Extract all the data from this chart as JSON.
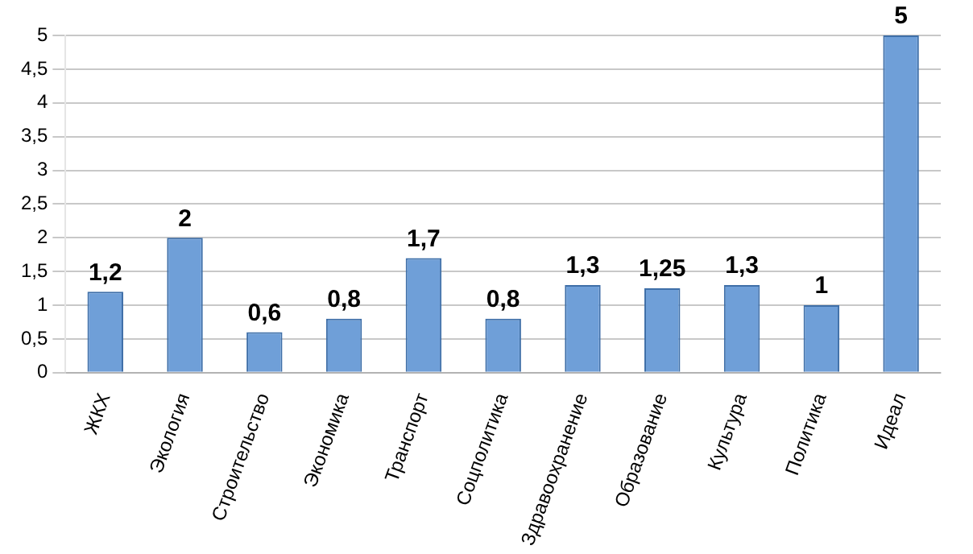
{
  "chart_data": {
    "type": "bar",
    "categories": [
      "ЖКХ",
      "Экология",
      "Строительство",
      "Экономика",
      "Транспорт",
      "Соцполитика",
      "Здравоохранение",
      "Образование",
      "Культура",
      "Политика",
      "Идеал"
    ],
    "values": [
      1.2,
      2,
      0.6,
      0.8,
      1.7,
      0.8,
      1.3,
      1.25,
      1.3,
      1,
      5
    ],
    "value_labels": [
      "1,2",
      "2",
      "0,6",
      "0,8",
      "1,7",
      "0,8",
      "1,3",
      "1,25",
      "1,3",
      "1",
      "5"
    ],
    "color": "#6f9fd8",
    "ylim": [
      0,
      5
    ],
    "yticks": [
      0,
      {
        "value": 0.5,
        "label": "0,5"
      },
      1,
      {
        "value": 1.5,
        "label": "1,5"
      },
      2,
      {
        "value": 2.5,
        "label": "2,5"
      },
      3,
      {
        "value": 3.5,
        "label": "3,5"
      },
      4,
      {
        "value": 4.5,
        "label": "4,5"
      },
      5
    ],
    "grid": "y"
  }
}
